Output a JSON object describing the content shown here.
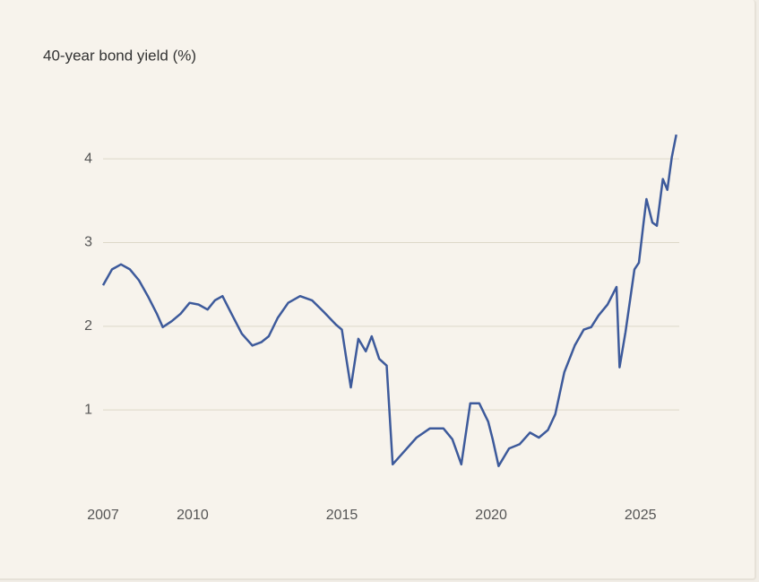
{
  "chart_data": {
    "type": "line",
    "title": "40-year bond yield (%)",
    "x": [
      2007.0,
      2007.3,
      2007.6,
      2007.9,
      2008.2,
      2008.5,
      2008.8,
      2009.0,
      2009.3,
      2009.6,
      2009.9,
      2010.2,
      2010.5,
      2010.75,
      2011.0,
      2011.3,
      2011.65,
      2012.0,
      2012.3,
      2012.55,
      2012.85,
      2013.2,
      2013.6,
      2014.0,
      2014.4,
      2014.8,
      2015.0,
      2015.15,
      2015.3,
      2015.55,
      2015.8,
      2016.0,
      2016.25,
      2016.5,
      2016.7,
      2017.05,
      2017.5,
      2017.95,
      2018.4,
      2018.7,
      2019.0,
      2019.3,
      2019.6,
      2019.9,
      2020.05,
      2020.25,
      2020.6,
      2020.95,
      2021.3,
      2021.6,
      2021.9,
      2022.15,
      2022.45,
      2022.8,
      2023.1,
      2023.35,
      2023.6,
      2023.9,
      2024.2,
      2024.3,
      2024.5,
      2024.8,
      2024.95,
      2025.1,
      2025.2,
      2025.4,
      2025.55,
      2025.75,
      2025.9,
      2026.05,
      2026.2
    ],
    "series": [
      {
        "name": "40-year bond yield",
        "color": "#3d5a9b",
        "values": [
          2.49,
          2.68,
          2.74,
          2.68,
          2.55,
          2.36,
          2.15,
          1.99,
          2.06,
          2.15,
          2.28,
          2.26,
          2.2,
          2.31,
          2.36,
          2.15,
          1.91,
          1.77,
          1.81,
          1.88,
          2.1,
          2.28,
          2.36,
          2.31,
          2.17,
          2.02,
          1.96,
          1.61,
          1.27,
          1.85,
          1.7,
          1.88,
          1.61,
          1.53,
          0.35,
          0.49,
          0.67,
          0.78,
          0.78,
          0.65,
          0.35,
          1.08,
          1.08,
          0.86,
          0.65,
          0.33,
          0.54,
          0.59,
          0.73,
          0.67,
          0.76,
          0.95,
          1.45,
          1.77,
          1.96,
          1.99,
          2.13,
          2.26,
          2.47,
          1.51,
          1.93,
          2.68,
          2.76,
          3.22,
          3.52,
          3.24,
          3.2,
          3.76,
          3.63,
          4.02,
          4.29
        ]
      }
    ],
    "xlim": [
      2007,
      2026.3
    ],
    "xticks": [
      2007,
      2010,
      2015,
      2020,
      2025
    ],
    "ylim": [
      0,
      4.5
    ],
    "yticks": [
      1,
      2,
      3,
      4
    ],
    "grid": true
  }
}
